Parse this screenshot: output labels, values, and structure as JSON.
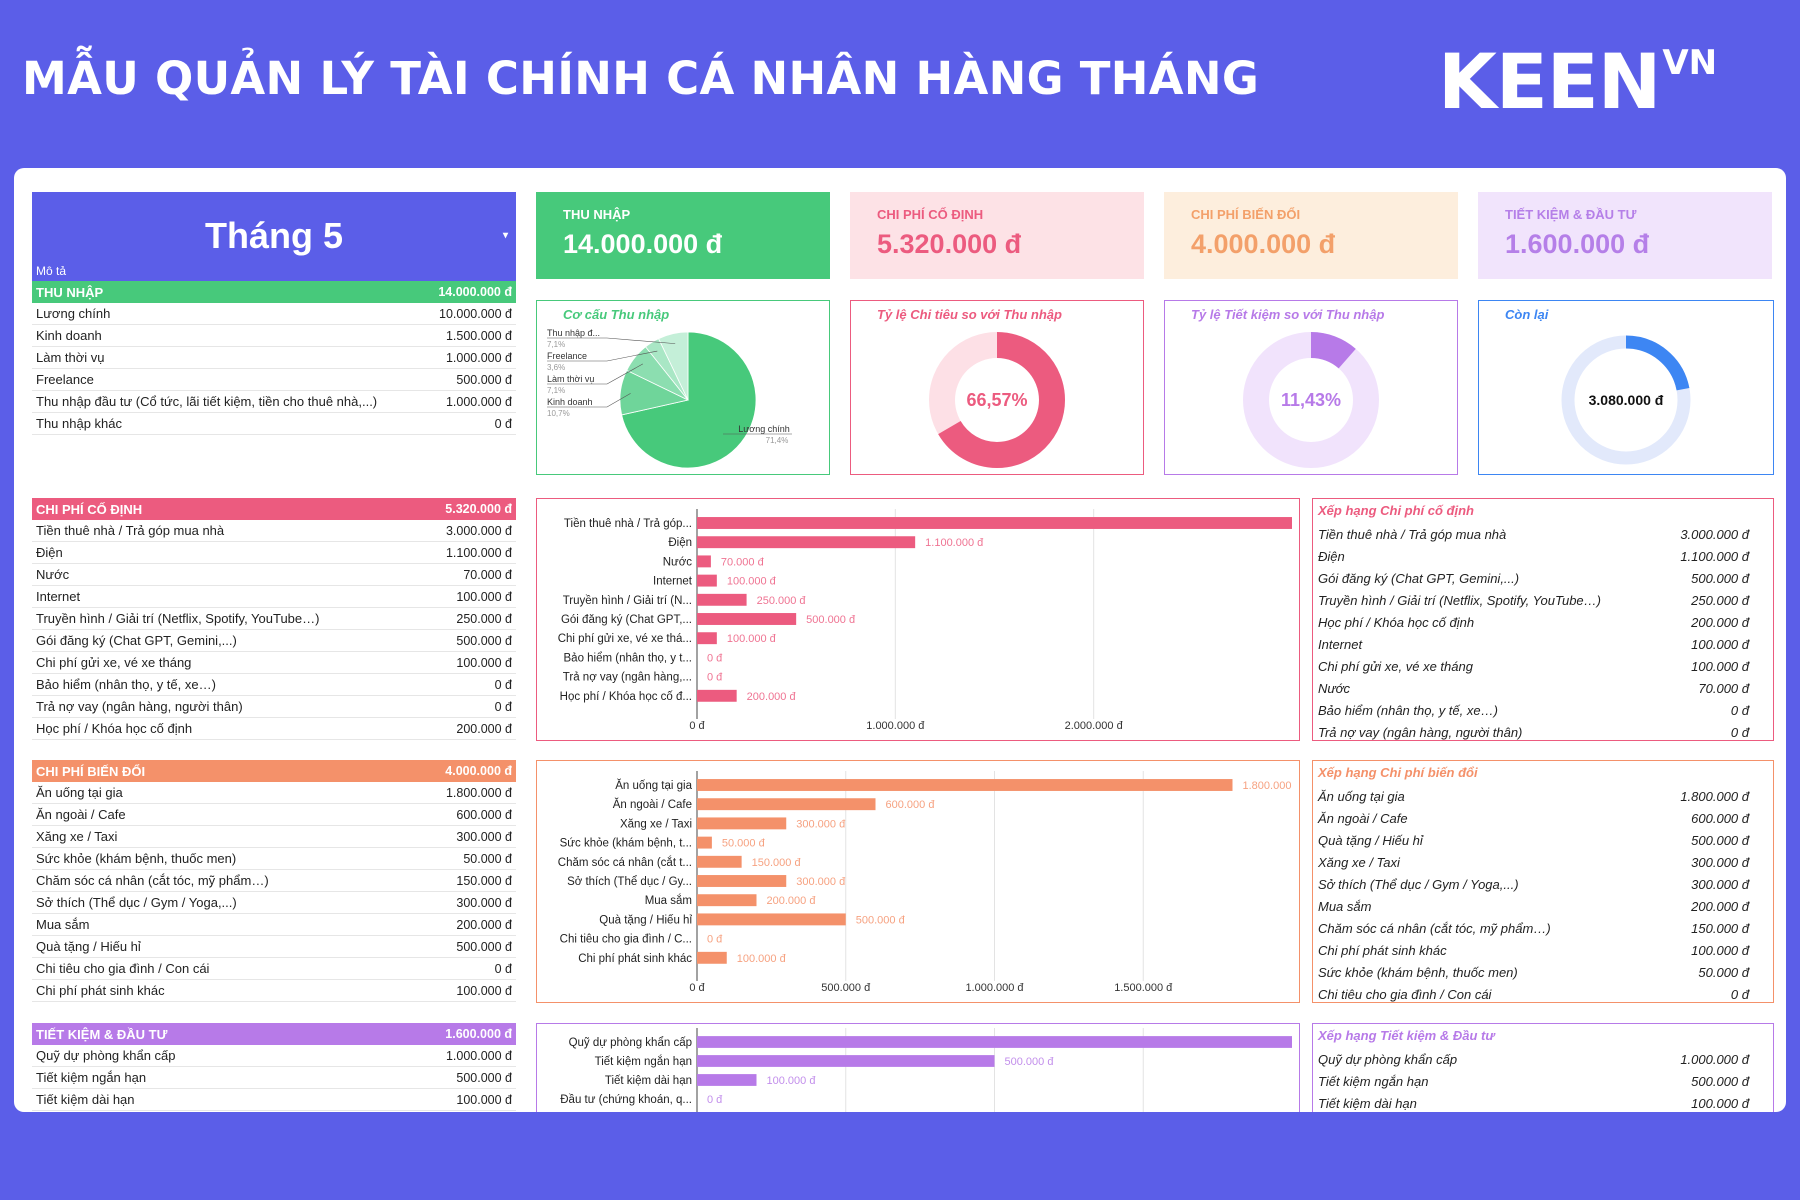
{
  "header": {
    "title": "MẪU QUẢN LÝ TÀI CHÍNH CÁ NHÂN HÀNG THÁNG",
    "logo": "KEEN",
    "logo_sup": "VN"
  },
  "month": {
    "label": "Tháng 5",
    "caret": "▾"
  },
  "kpis": [
    {
      "label": "THU NHẬP",
      "value": "14.000.000 đ",
      "bg": "#47c97b",
      "fg": "#ffffff"
    },
    {
      "label": "CHI PHÍ CỐ ĐỊNH",
      "value": "5.320.000 đ",
      "bg": "#fde2e6",
      "fg": "#ec5b7f"
    },
    {
      "label": "CHI PHÍ BIẾN ĐỔI",
      "value": "4.000.000 đ",
      "bg": "#fdeedd",
      "fg": "#f3a06a"
    },
    {
      "label": "TIẾT KIỆM & ĐẦU TƯ",
      "value": "1.600.000 đ",
      "bg": "#f1e4fc",
      "fg": "#b57fe8"
    }
  ],
  "colors": {
    "income": "#47c97b",
    "fixed": "#ec5b7f",
    "variable": "#f4916a",
    "saving": "#b77ae8",
    "blue": "#3d86f3"
  },
  "table_mota": "Mô tả",
  "tables": [
    {
      "key": "income",
      "title": "THU NHẬP",
      "total": "14.000.000 đ",
      "rows": [
        [
          "Lương chính",
          "10.000.000 đ"
        ],
        [
          "Kinh doanh",
          "1.500.000 đ"
        ],
        [
          "Làm thời vụ",
          "1.000.000 đ"
        ],
        [
          "Freelance",
          "500.000 đ"
        ],
        [
          "Thu nhập đầu tư (Cổ tức, lãi tiết kiệm, tiền cho thuê nhà,...)",
          "1.000.000 đ"
        ],
        [
          "Thu nhập khác",
          "0 đ"
        ]
      ]
    },
    {
      "key": "fixed",
      "title": "CHI PHÍ CỐ ĐỊNH",
      "total": "5.320.000 đ",
      "rows": [
        [
          "Tiền thuê nhà / Trả góp mua nhà",
          "3.000.000 đ"
        ],
        [
          "Điện",
          "1.100.000 đ"
        ],
        [
          "Nước",
          "70.000 đ"
        ],
        [
          "Internet",
          "100.000 đ"
        ],
        [
          "Truyền hình / Giải trí (Netflix, Spotify, YouTube…)",
          "250.000 đ"
        ],
        [
          "Gói đăng ký (Chat GPT, Gemini,...)",
          "500.000 đ"
        ],
        [
          "Chi phí gửi xe, vé xe tháng",
          "100.000 đ"
        ],
        [
          "Bảo hiểm (nhân thọ, y tế, xe…)",
          "0 đ"
        ],
        [
          "Trả nợ vay (ngân hàng, người thân)",
          "0 đ"
        ],
        [
          "Học phí / Khóa học cố định",
          "200.000 đ"
        ]
      ]
    },
    {
      "key": "variable",
      "title": "CHI PHÍ BIẾN ĐỔI",
      "total": "4.000.000 đ",
      "rows": [
        [
          "Ăn uống tại gia",
          "1.800.000 đ"
        ],
        [
          "Ăn ngoài / Cafe",
          "600.000 đ"
        ],
        [
          "Xăng xe / Taxi",
          "300.000 đ"
        ],
        [
          "Sức khỏe (khám bệnh, thuốc men)",
          "50.000 đ"
        ],
        [
          "Chăm sóc cá nhân (cắt tóc, mỹ phẩm…)",
          "150.000 đ"
        ],
        [
          "Sở thích (Thể dục / Gym / Yoga,...)",
          "300.000 đ"
        ],
        [
          "Mua sắm",
          "200.000 đ"
        ],
        [
          "Quà tặng / Hiếu hỉ",
          "500.000 đ"
        ],
        [
          "Chi tiêu cho gia đình / Con cái",
          "0 đ"
        ],
        [
          "Chi phí phát sinh khác",
          "100.000 đ"
        ]
      ]
    },
    {
      "key": "saving",
      "title": "TIẾT KIỆM & ĐẦU TƯ",
      "total": "1.600.000 đ",
      "rows": [
        [
          "Quỹ dự phòng khẩn cấp",
          "1.000.000 đ"
        ],
        [
          "Tiết kiệm ngắn hạn",
          "500.000 đ"
        ],
        [
          "Tiết kiệm dài hạn",
          "100.000 đ"
        ]
      ]
    }
  ],
  "chart_data": [
    {
      "type": "pie",
      "title": "Cơ cấu Thu nhập",
      "labels": [
        "Lương chính",
        "Kinh doanh",
        "Làm thời vụ",
        "Freelance",
        "Thu nhập đ..."
      ],
      "values": [
        71.4,
        10.7,
        7.1,
        3.6,
        7.1
      ],
      "label_pcts": [
        "71,4%",
        "10,7%",
        "7,1%",
        "3,6%",
        "7,1%"
      ]
    },
    {
      "type": "donut",
      "title": "Tỷ lệ Chi tiêu so với Thu nhập",
      "value": 66.57,
      "center": "66,57%"
    },
    {
      "type": "donut",
      "title": "Tỷ lệ Tiết kiệm so với Thu nhập",
      "value": 11.43,
      "center": "11,43%"
    },
    {
      "type": "donut",
      "title": "Còn lại",
      "value": 22.0,
      "center": "3.080.000 đ"
    },
    {
      "type": "bar",
      "orientation": "horizontal",
      "series_key": "fixed",
      "categories": [
        "Tiền thuê nhà / Trả góp...",
        "Điện",
        "Nước",
        "Internet",
        "Truyền hình / Giải trí (N...",
        "Gói đăng ký (Chat GPT,...",
        "Chi phí gửi xe, vé xe thá...",
        "Bảo hiểm (nhân thọ, y t...",
        "Trả nợ vay (ngân hàng,...",
        "Học phí / Khóa học cố đ..."
      ],
      "values": [
        3000000,
        1100000,
        70000,
        100000,
        250000,
        500000,
        100000,
        0,
        0,
        200000
      ],
      "labels": [
        "",
        "1.100.000 đ",
        "70.000 đ",
        "100.000 đ",
        "250.000 đ",
        "500.000 đ",
        "100.000 đ",
        "0 đ",
        "0 đ",
        "200.000 đ"
      ],
      "xlim": [
        0,
        3000000
      ],
      "ticks": [
        0,
        1000000,
        2000000
      ],
      "tick_labels": [
        "0 đ",
        "1.000.000 đ",
        "2.000.000 đ"
      ]
    },
    {
      "type": "bar",
      "orientation": "horizontal",
      "series_key": "variable",
      "categories": [
        "Ăn uống tại gia",
        "Ăn ngoài / Cafe",
        "Xăng xe / Taxi",
        "Sức khỏe (khám bệnh, t...",
        "Chăm sóc cá nhân (cắt t...",
        "Sở thích (Thể dục / Gy...",
        "Mua sắm",
        "Quà tặng / Hiếu hỉ",
        "Chi tiêu cho gia đình / C...",
        "Chi phí phát sinh khác"
      ],
      "values": [
        1800000,
        600000,
        300000,
        50000,
        150000,
        300000,
        200000,
        500000,
        0,
        100000
      ],
      "labels": [
        "1.800.000",
        "600.000 đ",
        "300.000 đ",
        "50.000 đ",
        "150.000 đ",
        "300.000 đ",
        "200.000 đ",
        "500.000 đ",
        "0 đ",
        "100.000 đ"
      ],
      "xlim": [
        0,
        2000000
      ],
      "ticks": [
        0,
        500000,
        1000000,
        1500000
      ],
      "tick_labels": [
        "0 đ",
        "500.000 đ",
        "1.000.000 đ",
        "1.500.000 đ"
      ]
    },
    {
      "type": "bar",
      "orientation": "horizontal",
      "series_key": "saving",
      "categories": [
        "Quỹ dự phòng khẩn cấp",
        "Tiết kiệm ngắn hạn",
        "Tiết kiệm dài hạn",
        "Đầu tư (chứng khoán, q..."
      ],
      "values": [
        1000000,
        500000,
        100000,
        0
      ],
      "labels": [
        "",
        "500.000 đ",
        "100.000 đ",
        "0 đ"
      ],
      "xlim": [
        0,
        1000000
      ],
      "ticks": [],
      "tick_labels": []
    }
  ],
  "rankings": [
    {
      "key": "fixed",
      "title": "Xếp hạng Chi phí cố định",
      "rows": [
        [
          "Tiền thuê nhà / Trả góp mua nhà",
          "3.000.000 đ"
        ],
        [
          "Điện",
          "1.100.000 đ"
        ],
        [
          "Gói đăng ký (Chat GPT, Gemini,...)",
          "500.000 đ"
        ],
        [
          "Truyền hình / Giải trí (Netflix, Spotify, YouTube…)",
          "250.000 đ"
        ],
        [
          "Học phí / Khóa học cố định",
          "200.000 đ"
        ],
        [
          "Internet",
          "100.000 đ"
        ],
        [
          "Chi phí gửi xe, vé xe tháng",
          "100.000 đ"
        ],
        [
          "Nước",
          "70.000 đ"
        ],
        [
          "Bảo hiểm (nhân thọ, y tế, xe…)",
          "0 đ"
        ],
        [
          "Trả nợ vay (ngân hàng, người thân)",
          "0 đ"
        ]
      ]
    },
    {
      "key": "variable",
      "title": "Xếp hạng Chi phí biến đổi",
      "rows": [
        [
          "Ăn uống tại gia",
          "1.800.000 đ"
        ],
        [
          "Ăn ngoài / Cafe",
          "600.000 đ"
        ],
        [
          "Quà tặng / Hiếu hỉ",
          "500.000 đ"
        ],
        [
          "Xăng xe / Taxi",
          "300.000 đ"
        ],
        [
          "Sở thích (Thể dục / Gym / Yoga,...)",
          "300.000 đ"
        ],
        [
          "Mua sắm",
          "200.000 đ"
        ],
        [
          "Chăm sóc cá nhân (cắt tóc, mỹ phẩm…)",
          "150.000 đ"
        ],
        [
          "Chi phí phát sinh khác",
          "100.000 đ"
        ],
        [
          "Sức khỏe (khám bệnh, thuốc men)",
          "50.000 đ"
        ],
        [
          "Chi tiêu cho gia đình / Con cái",
          "0 đ"
        ]
      ]
    },
    {
      "key": "saving",
      "title": "Xếp hạng Tiết kiệm & Đầu tư",
      "rows": [
        [
          "Quỹ dự phòng khẩn cấp",
          "1.000.000 đ"
        ],
        [
          "Tiết kiệm ngắn hạn",
          "500.000 đ"
        ],
        [
          "Tiết kiệm dài hạn",
          "100.000 đ"
        ]
      ]
    }
  ]
}
